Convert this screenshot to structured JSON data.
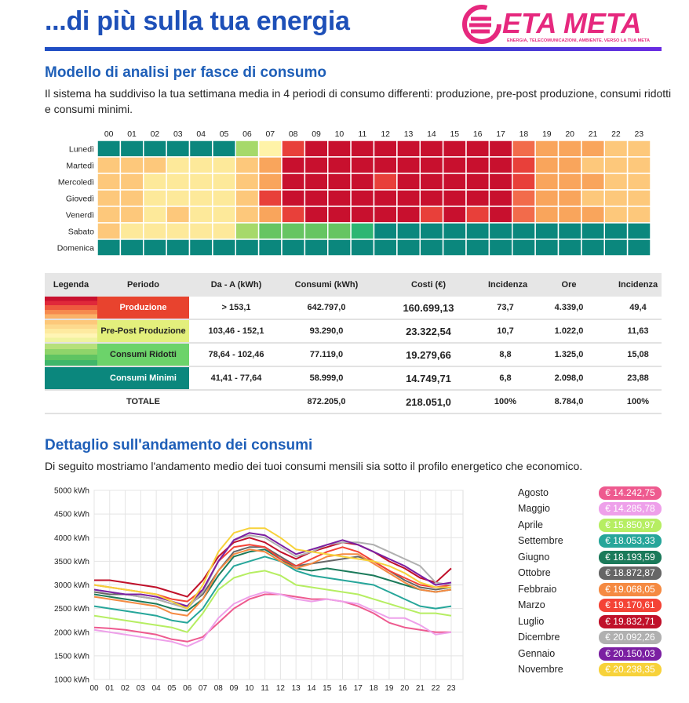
{
  "header": {
    "title": "...di più sulla tua energia",
    "logo": "ETA META",
    "tagline": "ENERGIA, TELECOMUNICAZIONI, AMBIENTE. VERSO LA TUA META"
  },
  "sections": [
    {
      "heading": "Modello di analisi per fasce di consumo",
      "text": "Il sistema ha suddiviso la tua settimana media in 4 periodi di consumo differenti: produzione, pre-post produzione, consumi ridotti e consumi minimi."
    },
    {
      "heading": "Dettaglio sull'andamento dei consumi",
      "text": "Di seguito mostriamo l'andamento medio dei tuoi consumi mensili sia sotto il profilo energetico che economico."
    }
  ],
  "heatmap": {
    "hours": [
      "00",
      "01",
      "02",
      "03",
      "04",
      "05",
      "06",
      "07",
      "08",
      "09",
      "10",
      "11",
      "12",
      "13",
      "14",
      "15",
      "16",
      "17",
      "18",
      "19",
      "20",
      "21",
      "22",
      "23"
    ],
    "days": [
      "Lunedì",
      "Martedì",
      "Mercoledì",
      "Giovedì",
      "Venerdì",
      "Sabato",
      "Domenica"
    ],
    "colors": [
      [
        "#0b877d",
        "#0b877d",
        "#0b877d",
        "#0b877d",
        "#0b877d",
        "#0b877d",
        "#a6d96a",
        "#fff3a8",
        "#e8403a",
        "#c8102e",
        "#c8102e",
        "#c8102e",
        "#c8102e",
        "#c8102e",
        "#c8102e",
        "#c8102e",
        "#c8102e",
        "#c8102e",
        "#f26b4b",
        "#f9a55c",
        "#f9a55c",
        "#f9a55c",
        "#fdc87b",
        "#fdc87b"
      ],
      [
        "#fdc87b",
        "#fdc87b",
        "#fdc87b",
        "#fde99a",
        "#fde99a",
        "#fde99a",
        "#fdc87b",
        "#f9a55c",
        "#c8102e",
        "#c8102e",
        "#c8102e",
        "#c8102e",
        "#c8102e",
        "#c8102e",
        "#c8102e",
        "#c8102e",
        "#c8102e",
        "#c8102e",
        "#e8403a",
        "#f9a55c",
        "#f9a55c",
        "#fdc87b",
        "#fdc87b",
        "#fdc87b"
      ],
      [
        "#fdc87b",
        "#fdc87b",
        "#fde99a",
        "#fde99a",
        "#fde99a",
        "#fde99a",
        "#fdc87b",
        "#f9a55c",
        "#c8102e",
        "#c8102e",
        "#c8102e",
        "#c8102e",
        "#e8403a",
        "#c8102e",
        "#c8102e",
        "#c8102e",
        "#c8102e",
        "#c8102e",
        "#e8403a",
        "#f9a55c",
        "#f9a55c",
        "#f9a55c",
        "#fdc87b",
        "#fdc87b"
      ],
      [
        "#fdc87b",
        "#fdc87b",
        "#fde99a",
        "#fde99a",
        "#fde99a",
        "#fde99a",
        "#fdc87b",
        "#e8403a",
        "#c8102e",
        "#c8102e",
        "#c8102e",
        "#c8102e",
        "#c8102e",
        "#c8102e",
        "#c8102e",
        "#c8102e",
        "#c8102e",
        "#c8102e",
        "#f26b4b",
        "#f9a55c",
        "#f9a55c",
        "#fdc87b",
        "#fdc87b",
        "#fdc87b"
      ],
      [
        "#fdc87b",
        "#fdc87b",
        "#fde99a",
        "#fdc87b",
        "#fde99a",
        "#fde99a",
        "#fdc87b",
        "#f9a55c",
        "#e8403a",
        "#c8102e",
        "#c8102e",
        "#c8102e",
        "#c8102e",
        "#c8102e",
        "#e8403a",
        "#c8102e",
        "#e8403a",
        "#c8102e",
        "#f26b4b",
        "#f9a55c",
        "#f9a55c",
        "#f9a55c",
        "#fdc87b",
        "#fdc87b"
      ],
      [
        "#fdc87b",
        "#fde99a",
        "#fde99a",
        "#fde99a",
        "#fde99a",
        "#fde99a",
        "#a6d96a",
        "#66c562",
        "#66c562",
        "#66c562",
        "#66c562",
        "#2db673",
        "#0b877d",
        "#0b877d",
        "#0b877d",
        "#0b877d",
        "#0b877d",
        "#0b877d",
        "#0b877d",
        "#0b877d",
        "#0b877d",
        "#0b877d",
        "#0b877d",
        "#0b877d"
      ],
      [
        "#0b877d",
        "#0b877d",
        "#0b877d",
        "#0b877d",
        "#0b877d",
        "#0b877d",
        "#0b877d",
        "#0b877d",
        "#0b877d",
        "#0b877d",
        "#0b877d",
        "#0b877d",
        "#0b877d",
        "#0b877d",
        "#0b877d",
        "#0b877d",
        "#0b877d",
        "#0b877d",
        "#0b877d",
        "#0b877d",
        "#0b877d",
        "#0b877d",
        "#0b877d",
        "#0b877d"
      ]
    ]
  },
  "table": {
    "headers": [
      "Legenda",
      "Periodo",
      "Da - A (kWh)",
      "Consumi (kWh)",
      "Costi (€)",
      "Incidenza",
      "Ore",
      "Incidenza"
    ],
    "rows": [
      {
        "period": "Produzione",
        "range": "> 153,1",
        "consumi": "642.797,0",
        "costi": "160.699,13",
        "incidenza": "73,7",
        "ore": "4.339,0",
        "incidenza_ore": "49,4",
        "color": "#e8432e",
        "text_color": "#ffffff",
        "stripes": [
          "#c8102e",
          "#e0283a",
          "#ee5a3e",
          "#f68a4e",
          "#fbb268"
        ]
      },
      {
        "period": "Pre-Post Produzione",
        "range": "103,46 - 152,1",
        "consumi": "93.290,0",
        "costi": "23.322,54",
        "incidenza": "10,7",
        "ore": "1.022,0",
        "incidenza_ore": "11,63",
        "color": "#e3ef7c",
        "text_color": "#222222",
        "stripes": [
          "#fdc87b",
          "#fdd98e",
          "#feeaa0",
          "#fff5b5",
          "#f0f3a0"
        ]
      },
      {
        "period": "Consumi Ridotti",
        "range": "78,64 - 102,46",
        "consumi": "77.119,0",
        "costi": "19.279,66",
        "incidenza": "8,8",
        "ore": "1.325,0",
        "incidenza_ore": "15,08",
        "color": "#6cd36a",
        "text_color": "#222222",
        "stripes": [
          "#b6e07a",
          "#8fd46a",
          "#5fc462",
          "#3fb66a"
        ]
      },
      {
        "period": "Consumi Minimi",
        "range": "41,41 - 77,64",
        "consumi": "58.999,0",
        "costi": "14.749,71",
        "incidenza": "6,8",
        "ore": "2.098,0",
        "incidenza_ore": "23,88",
        "color": "#0b877d",
        "text_color": "#ffffff",
        "stripes": [
          "#0b877d"
        ]
      }
    ],
    "total": {
      "period": "TOTALE",
      "consumi": "872.205,0",
      "costi": "218.051,0",
      "incidenza": "100%",
      "ore": "8.784,0",
      "incidenza_ore": "100%"
    }
  },
  "chart_data": {
    "type": "line",
    "categories": [
      "00",
      "01",
      "02",
      "03",
      "04",
      "05",
      "06",
      "07",
      "08",
      "09",
      "10",
      "11",
      "12",
      "13",
      "14",
      "15",
      "16",
      "17",
      "18",
      "19",
      "20",
      "21",
      "22",
      "23"
    ],
    "ylim": [
      1000,
      5000
    ],
    "yticks": [
      {
        "value": 1000,
        "label": "1000 kWh"
      },
      {
        "value": 1500,
        "label": "1500 kWh"
      },
      {
        "value": 2000,
        "label": "2000 kWh"
      },
      {
        "value": 2500,
        "label": "2500 kWh"
      },
      {
        "value": 3000,
        "label": "3000 kWh"
      },
      {
        "value": 3500,
        "label": "3500 kWh"
      },
      {
        "value": 4000,
        "label": "4000 kWh"
      },
      {
        "value": 4500,
        "label": "4500 kWh"
      },
      {
        "value": 5000,
        "label": "5000 kWh"
      }
    ],
    "grid": true,
    "series": [
      {
        "name": "Agosto",
        "cost": "€ 14.242,75",
        "color": "#ee5a8f",
        "values": [
          2100,
          2080,
          2050,
          2000,
          1950,
          1850,
          1800,
          1900,
          2200,
          2500,
          2700,
          2800,
          2800,
          2750,
          2700,
          2700,
          2650,
          2550,
          2400,
          2200,
          2100,
          2050,
          2000,
          2000
        ]
      },
      {
        "name": "Maggio",
        "cost": "€ 14.285,78",
        "color": "#eea0ea",
        "values": [
          2050,
          2000,
          1950,
          1900,
          1850,
          1800,
          1700,
          1850,
          2300,
          2600,
          2750,
          2850,
          2800,
          2700,
          2650,
          2700,
          2650,
          2600,
          2450,
          2300,
          2300,
          2150,
          1950,
          2000
        ]
      },
      {
        "name": "Aprile",
        "cost": "€ 15.850,97",
        "color": "#b6ee62",
        "values": [
          2350,
          2300,
          2250,
          2200,
          2150,
          2100,
          2000,
          2400,
          2900,
          3150,
          3250,
          3300,
          3200,
          3000,
          2950,
          2900,
          2850,
          2800,
          2700,
          2600,
          2500,
          2400,
          2400,
          2350
        ]
      },
      {
        "name": "Settembre",
        "cost": "€ 18.053,33",
        "color": "#26a69a",
        "values": [
          2550,
          2500,
          2450,
          2400,
          2350,
          2250,
          2200,
          2500,
          3000,
          3400,
          3500,
          3600,
          3500,
          3300,
          3200,
          3150,
          3100,
          3050,
          3000,
          2850,
          2700,
          2550,
          2500,
          2550
        ]
      },
      {
        "name": "Giugno",
        "cost": "€ 18.193,59",
        "color": "#1b7a5a",
        "values": [
          2800,
          2750,
          2700,
          2650,
          2600,
          2500,
          2450,
          2700,
          3200,
          3600,
          3700,
          3750,
          3550,
          3350,
          3300,
          3350,
          3300,
          3250,
          3200,
          3100,
          3000,
          2900,
          2850,
          2900
        ]
      },
      {
        "name": "Ottobre",
        "cost": "€ 18.872,87",
        "color": "#666666",
        "values": [
          2850,
          2800,
          2800,
          2750,
          2700,
          2600,
          2550,
          2800,
          3300,
          3700,
          3800,
          3800,
          3600,
          3400,
          3450,
          3500,
          3550,
          3600,
          3500,
          3300,
          3100,
          2950,
          2900,
          2950
        ]
      },
      {
        "name": "Febbraio",
        "cost": "€ 19.068,05",
        "color": "#f58a42",
        "values": [
          2750,
          2700,
          2650,
          2600,
          2550,
          2400,
          2350,
          2700,
          3300,
          3650,
          3750,
          3700,
          3500,
          3350,
          3450,
          3600,
          3650,
          3650,
          3450,
          3250,
          3050,
          2900,
          2850,
          2900
        ]
      },
      {
        "name": "Marzo",
        "cost": "€ 19.170,61",
        "color": "#f44336",
        "values": [
          3000,
          2950,
          2900,
          2850,
          2800,
          2700,
          2650,
          2900,
          3500,
          3800,
          3850,
          3800,
          3550,
          3400,
          3550,
          3700,
          3800,
          3700,
          3500,
          3300,
          3150,
          3000,
          2950,
          3000
        ]
      },
      {
        "name": "Luglio",
        "cost": "€ 19.832,71",
        "color": "#c0102a",
        "values": [
          3100,
          3100,
          3050,
          3000,
          2950,
          2850,
          2750,
          3100,
          3600,
          3900,
          4000,
          3900,
          3700,
          3550,
          3700,
          3800,
          3900,
          3850,
          3700,
          3500,
          3350,
          3150,
          3050,
          3350
        ]
      },
      {
        "name": "Dicembre",
        "cost": "€ 20.092,26",
        "color": "#b0b0b0",
        "values": [
          2900,
          2850,
          2800,
          2750,
          2700,
          2600,
          2500,
          2850,
          3500,
          3950,
          4050,
          4000,
          3800,
          3600,
          3700,
          3850,
          3900,
          3900,
          3850,
          3700,
          3550,
          3400,
          3050,
          3000
        ]
      },
      {
        "name": "Gennaio",
        "cost": "€ 20.150,03",
        "color": "#7b1fa2",
        "values": [
          2900,
          2850,
          2800,
          2800,
          2750,
          2650,
          2550,
          2900,
          3500,
          3950,
          4100,
          4050,
          3850,
          3650,
          3750,
          3850,
          3950,
          3850,
          3700,
          3550,
          3400,
          3200,
          3000,
          3050
        ]
      },
      {
        "name": "Novembre",
        "cost": "€ 20.238,35",
        "color": "#f7d23a",
        "values": [
          3000,
          2950,
          2900,
          2850,
          2800,
          2650,
          2500,
          3000,
          3700,
          4100,
          4200,
          4200,
          4000,
          3750,
          3700,
          3650,
          3600,
          3550,
          3500,
          3400,
          3250,
          3050,
          2950,
          2950
        ]
      }
    ]
  }
}
